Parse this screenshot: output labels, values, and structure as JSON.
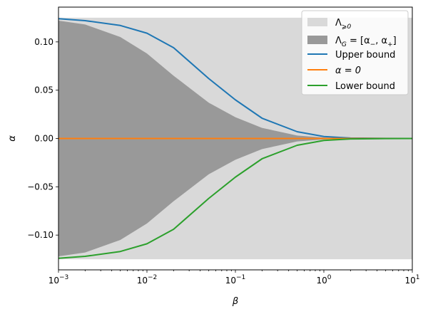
{
  "chart_data": {
    "type": "area",
    "xscale": "log",
    "xlim": [
      0.001,
      10
    ],
    "ylim": [
      -0.136,
      0.136
    ],
    "xlabel": "β",
    "ylabel": "α",
    "grid": false,
    "legend_placement": "top-right",
    "x_ticks": [
      {
        "value": 0.001,
        "base": "10",
        "exp": "−3"
      },
      {
        "value": 0.01,
        "base": "10",
        "exp": "−2"
      },
      {
        "value": 0.1,
        "base": "10",
        "exp": "−1"
      },
      {
        "value": 1,
        "base": "10",
        "exp": "0"
      },
      {
        "value": 10,
        "base": "10",
        "exp": "1"
      }
    ],
    "y_ticks": [
      {
        "value": 0.1,
        "label": "0.10"
      },
      {
        "value": 0.05,
        "label": "0.05"
      },
      {
        "value": 0.0,
        "label": "0.00"
      },
      {
        "value": -0.05,
        "label": "−0.05"
      },
      {
        "value": -0.1,
        "label": "−0.10"
      }
    ],
    "beta": [
      0.001,
      0.002,
      0.005,
      0.01,
      0.02,
      0.05,
      0.1,
      0.2,
      0.5,
      1,
      2,
      5,
      10
    ],
    "series": [
      {
        "kind": "band",
        "legend_label": "Λ",
        "legend_sub": "⩾0",
        "color": "#d9d9d9",
        "lower": [
          -0.125,
          -0.125,
          -0.125,
          -0.125,
          -0.125,
          -0.125,
          -0.125,
          -0.125,
          -0.125,
          -0.125,
          -0.125,
          -0.125,
          -0.125
        ],
        "upper": [
          0.125,
          0.125,
          0.125,
          0.125,
          0.125,
          0.125,
          0.125,
          0.125,
          0.125,
          0.125,
          0.125,
          0.125,
          0.125
        ]
      },
      {
        "kind": "band",
        "legend_label": "Λ",
        "legend_sub": "G",
        "legend_rest": " = [α",
        "legend_sub2": "−",
        "legend_rest2": ", α",
        "legend_sub3": "+",
        "legend_rest3": "]",
        "color": "#999999",
        "lower": [
          -0.122,
          -0.118,
          -0.105,
          -0.088,
          -0.065,
          -0.037,
          -0.022,
          -0.011,
          -0.003,
          -0.001,
          -0.0003,
          -0.0001,
          0.0
        ],
        "upper": [
          0.122,
          0.118,
          0.105,
          0.088,
          0.065,
          0.037,
          0.022,
          0.011,
          0.003,
          0.001,
          0.0003,
          0.0001,
          0.0
        ]
      },
      {
        "kind": "line",
        "name": "Upper bound",
        "color": "#1f77b4",
        "values": [
          0.124,
          0.122,
          0.117,
          0.109,
          0.094,
          0.062,
          0.04,
          0.021,
          0.007,
          0.002,
          0.0005,
          0.0001,
          0.0
        ]
      },
      {
        "kind": "line",
        "name": "α = 0",
        "legend_math": true,
        "color": "#ff7f0e",
        "values": [
          0,
          0,
          0,
          0,
          0,
          0,
          0,
          0,
          0,
          0,
          0,
          0,
          0
        ]
      },
      {
        "kind": "line",
        "name": "Lower bound",
        "color": "#2ca02c",
        "values": [
          -0.124,
          -0.122,
          -0.117,
          -0.109,
          -0.094,
          -0.062,
          -0.04,
          -0.021,
          -0.007,
          -0.002,
          -0.0005,
          -0.0001,
          0.0
        ]
      }
    ]
  }
}
